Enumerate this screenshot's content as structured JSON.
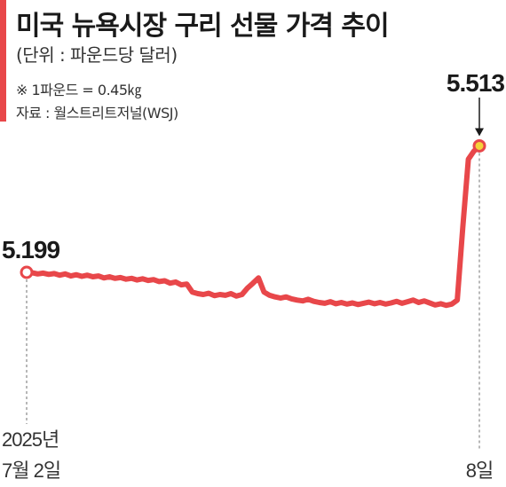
{
  "header": {
    "title": "미국 뉴욕시장 구리 선물 가격 추이",
    "unit": "(단위 : 파운드당 달러)",
    "note": "※ 1파운드 = 0.45㎏",
    "source": "자료 : 월스트리트저널(WSJ)"
  },
  "colors": {
    "accent": "#e8474a",
    "line": "#e8474a",
    "end_marker_fill": "#f5d33a",
    "text": "#1a1a1a"
  },
  "chart_data": {
    "type": "line",
    "title": "미국 뉴욕시장 구리 선물 가격 추이",
    "unit": "파운드당 달러",
    "x_start_label": "2025년",
    "x_start_label2": "7월 2일",
    "x_end_label": "8일",
    "start_value_label": "5.199",
    "end_value_label": "5.513",
    "ylim": [
      4.95,
      5.6
    ],
    "grid": false,
    "legend": "none",
    "series": [
      {
        "values": [
          5.199,
          5.198,
          5.195,
          5.197,
          5.194,
          5.196,
          5.192,
          5.195,
          5.19,
          5.193,
          5.189,
          5.192,
          5.188,
          5.19,
          5.185,
          5.188,
          5.184,
          5.186,
          5.182,
          5.184,
          5.18,
          5.183,
          5.179,
          5.181,
          5.176,
          5.178,
          5.172,
          5.175,
          5.168,
          5.17,
          5.15,
          5.146,
          5.144,
          5.147,
          5.141,
          5.144,
          5.142,
          5.146,
          5.14,
          5.144,
          5.16,
          5.172,
          5.185,
          5.15,
          5.142,
          5.138,
          5.135,
          5.138,
          5.133,
          5.13,
          5.128,
          5.132,
          5.127,
          5.124,
          5.122,
          5.126,
          5.121,
          5.124,
          5.12,
          5.123,
          5.119,
          5.122,
          5.125,
          5.121,
          5.124,
          5.12,
          5.123,
          5.127,
          5.122,
          5.126,
          5.13,
          5.124,
          5.128,
          5.123,
          5.118,
          5.121,
          5.117,
          5.12,
          5.13,
          5.31,
          5.48,
          5.5,
          5.513
        ]
      }
    ]
  }
}
